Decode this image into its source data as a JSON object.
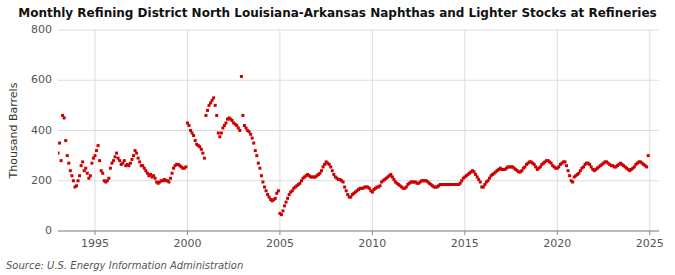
{
  "chart_data": {
    "type": "scatter",
    "title": "Monthly Refining District North Louisiana-Arkansas Naphthas and Lighter Stocks at Refineries",
    "y_label": "Thousand Barrels",
    "source": "Source: U.S. Energy Information Administration",
    "color": "#cc0000",
    "marker": "square",
    "grid": true,
    "xlim": [
      1993.0,
      2025.5
    ],
    "xticks": [
      1995,
      2000,
      2005,
      2010,
      2015,
      2020,
      2025
    ],
    "ylim": [
      0,
      800
    ],
    "yticks": [
      0,
      200,
      400,
      600,
      800
    ],
    "x": [
      1993.0,
      1993.083,
      1993.167,
      1993.25,
      1993.333,
      1993.417,
      1993.5,
      1993.583,
      1993.667,
      1993.75,
      1993.833,
      1993.917,
      1994.0,
      1994.083,
      1994.167,
      1994.25,
      1994.333,
      1994.417,
      1994.5,
      1994.583,
      1994.667,
      1994.75,
      1994.833,
      1994.917,
      1995.0,
      1995.083,
      1995.167,
      1995.25,
      1995.333,
      1995.417,
      1995.5,
      1995.583,
      1995.667,
      1995.75,
      1995.833,
      1995.917,
      1996.0,
      1996.083,
      1996.167,
      1996.25,
      1996.333,
      1996.417,
      1996.5,
      1996.583,
      1996.667,
      1996.75,
      1996.833,
      1996.917,
      1997.0,
      1997.083,
      1997.167,
      1997.25,
      1997.333,
      1997.417,
      1997.5,
      1997.583,
      1997.667,
      1997.75,
      1997.833,
      1997.917,
      1998.0,
      1998.083,
      1998.167,
      1998.25,
      1998.333,
      1998.417,
      1998.5,
      1998.583,
      1998.667,
      1998.75,
      1998.833,
      1998.917,
      1999.0,
      1999.083,
      1999.167,
      1999.25,
      1999.333,
      1999.417,
      1999.5,
      1999.583,
      1999.667,
      1999.75,
      1999.833,
      1999.917,
      2000.0,
      2000.083,
      2000.167,
      2000.25,
      2000.333,
      2000.417,
      2000.5,
      2000.583,
      2000.667,
      2000.75,
      2000.833,
      2000.917,
      2001.0,
      2001.083,
      2001.167,
      2001.25,
      2001.333,
      2001.417,
      2001.5,
      2001.583,
      2001.667,
      2001.75,
      2001.833,
      2001.917,
      2002.0,
      2002.083,
      2002.167,
      2002.25,
      2002.333,
      2002.417,
      2002.5,
      2002.583,
      2002.667,
      2002.75,
      2002.833,
      2002.917,
      2003.0,
      2003.083,
      2003.167,
      2003.25,
      2003.333,
      2003.417,
      2003.5,
      2003.583,
      2003.667,
      2003.75,
      2003.833,
      2003.917,
      2004.0,
      2004.083,
      2004.167,
      2004.25,
      2004.333,
      2004.417,
      2004.5,
      2004.583,
      2004.667,
      2004.75,
      2004.833,
      2004.917,
      2005.0,
      2005.083,
      2005.167,
      2005.25,
      2005.333,
      2005.417,
      2005.5,
      2005.583,
      2005.667,
      2005.75,
      2005.833,
      2005.917,
      2006.0,
      2006.083,
      2006.167,
      2006.25,
      2006.333,
      2006.417,
      2006.5,
      2006.583,
      2006.667,
      2006.75,
      2006.833,
      2006.917,
      2007.0,
      2007.083,
      2007.167,
      2007.25,
      2007.333,
      2007.417,
      2007.5,
      2007.583,
      2007.667,
      2007.75,
      2007.833,
      2007.917,
      2008.0,
      2008.083,
      2008.167,
      2008.25,
      2008.333,
      2008.417,
      2008.5,
      2008.583,
      2008.667,
      2008.75,
      2008.833,
      2008.917,
      2009.0,
      2009.083,
      2009.167,
      2009.25,
      2009.333,
      2009.417,
      2009.5,
      2009.583,
      2009.667,
      2009.75,
      2009.833,
      2009.917,
      2010.0,
      2010.083,
      2010.167,
      2010.25,
      2010.333,
      2010.417,
      2010.5,
      2010.583,
      2010.667,
      2010.75,
      2010.833,
      2010.917,
      2011.0,
      2011.083,
      2011.167,
      2011.25,
      2011.333,
      2011.417,
      2011.5,
      2011.583,
      2011.667,
      2011.75,
      2011.833,
      2011.917,
      2012.0,
      2012.083,
      2012.167,
      2012.25,
      2012.333,
      2012.417,
      2012.5,
      2012.583,
      2012.667,
      2012.75,
      2012.833,
      2012.917,
      2013.0,
      2013.083,
      2013.167,
      2013.25,
      2013.333,
      2013.417,
      2013.5,
      2013.583,
      2013.667,
      2013.75,
      2013.833,
      2013.917,
      2014.0,
      2014.083,
      2014.167,
      2014.25,
      2014.333,
      2014.417,
      2014.5,
      2014.583,
      2014.667,
      2014.75,
      2014.833,
      2014.917,
      2015.0,
      2015.083,
      2015.167,
      2015.25,
      2015.333,
      2015.417,
      2015.5,
      2015.583,
      2015.667,
      2015.75,
      2015.833,
      2015.917,
      2016.0,
      2016.083,
      2016.167,
      2016.25,
      2016.333,
      2016.417,
      2016.5,
      2016.583,
      2016.667,
      2016.75,
      2016.833,
      2016.917,
      2017.0,
      2017.083,
      2017.167,
      2017.25,
      2017.333,
      2017.417,
      2017.5,
      2017.583,
      2017.667,
      2017.75,
      2017.833,
      2017.917,
      2018.0,
      2018.083,
      2018.167,
      2018.25,
      2018.333,
      2018.417,
      2018.5,
      2018.583,
      2018.667,
      2018.75,
      2018.833,
      2018.917,
      2019.0,
      2019.083,
      2019.167,
      2019.25,
      2019.333,
      2019.417,
      2019.5,
      2019.583,
      2019.667,
      2019.75,
      2019.833,
      2019.917,
      2020.0,
      2020.083,
      2020.167,
      2020.25,
      2020.333,
      2020.417,
      2020.5,
      2020.583,
      2020.667,
      2020.75,
      2020.833,
      2020.917,
      2021.0,
      2021.083,
      2021.167,
      2021.25,
      2021.333,
      2021.417,
      2021.5,
      2021.583,
      2021.667,
      2021.75,
      2021.833,
      2021.917,
      2022.0,
      2022.083,
      2022.167,
      2022.25,
      2022.333,
      2022.417,
      2022.5,
      2022.583,
      2022.667,
      2022.75,
      2022.833,
      2022.917,
      2023.0,
      2023.083,
      2023.167,
      2023.25,
      2023.333,
      2023.417,
      2023.5,
      2023.583,
      2023.667,
      2023.75,
      2023.833,
      2023.917,
      2024.0,
      2024.083,
      2024.167,
      2024.25,
      2024.333,
      2024.417,
      2024.5,
      2024.583,
      2024.667,
      2024.75,
      2024.833,
      2024.917
    ],
    "values": [
      310,
      350,
      280,
      460,
      450,
      360,
      300,
      270,
      240,
      220,
      200,
      175,
      180,
      200,
      220,
      260,
      275,
      240,
      250,
      230,
      210,
      220,
      270,
      290,
      300,
      320,
      340,
      280,
      240,
      230,
      200,
      195,
      200,
      210,
      250,
      270,
      280,
      295,
      310,
      290,
      280,
      265,
      270,
      280,
      260,
      265,
      260,
      270,
      285,
      300,
      320,
      310,
      290,
      275,
      260,
      260,
      250,
      240,
      230,
      220,
      225,
      215,
      220,
      210,
      195,
      190,
      195,
      200,
      200,
      205,
      200,
      200,
      195,
      210,
      230,
      250,
      260,
      265,
      265,
      260,
      255,
      250,
      250,
      255,
      430,
      420,
      400,
      390,
      380,
      360,
      345,
      340,
      335,
      325,
      310,
      290,
      460,
      480,
      500,
      510,
      520,
      530,
      500,
      460,
      390,
      375,
      390,
      410,
      420,
      430,
      445,
      450,
      445,
      440,
      430,
      425,
      420,
      410,
      400,
      615,
      460,
      420,
      410,
      400,
      395,
      385,
      370,
      350,
      320,
      300,
      270,
      250,
      220,
      195,
      175,
      160,
      145,
      135,
      125,
      120,
      125,
      130,
      150,
      160,
      70,
      65,
      80,
      100,
      115,
      130,
      145,
      155,
      160,
      170,
      175,
      180,
      185,
      190,
      200,
      210,
      215,
      220,
      225,
      220,
      215,
      215,
      215,
      215,
      220,
      225,
      230,
      240,
      255,
      265,
      275,
      270,
      265,
      255,
      240,
      225,
      215,
      210,
      205,
      205,
      200,
      195,
      175,
      160,
      145,
      135,
      135,
      145,
      150,
      155,
      160,
      165,
      170,
      170,
      170,
      175,
      175,
      175,
      170,
      160,
      155,
      165,
      170,
      175,
      175,
      180,
      195,
      200,
      205,
      210,
      215,
      220,
      225,
      215,
      205,
      195,
      190,
      185,
      180,
      175,
      170,
      170,
      175,
      185,
      190,
      195,
      195,
      195,
      195,
      190,
      190,
      195,
      200,
      200,
      200,
      200,
      195,
      190,
      185,
      180,
      175,
      175,
      175,
      180,
      185,
      185,
      185,
      185,
      185,
      185,
      185,
      185,
      185,
      185,
      185,
      185,
      185,
      190,
      200,
      210,
      215,
      220,
      225,
      230,
      235,
      240,
      235,
      225,
      215,
      205,
      195,
      175,
      175,
      185,
      195,
      200,
      210,
      220,
      225,
      230,
      235,
      240,
      245,
      250,
      245,
      245,
      245,
      250,
      255,
      255,
      255,
      255,
      250,
      245,
      240,
      235,
      235,
      240,
      250,
      255,
      265,
      270,
      275,
      275,
      270,
      265,
      255,
      245,
      250,
      255,
      265,
      270,
      275,
      280,
      280,
      275,
      270,
      260,
      255,
      250,
      250,
      255,
      265,
      270,
      275,
      275,
      260,
      240,
      220,
      200,
      195,
      215,
      220,
      225,
      230,
      240,
      250,
      255,
      265,
      270,
      270,
      265,
      255,
      245,
      240,
      245,
      250,
      255,
      260,
      265,
      270,
      275,
      275,
      270,
      265,
      260,
      260,
      255,
      255,
      260,
      265,
      270,
      265,
      260,
      255,
      250,
      245,
      240,
      245,
      250,
      255,
      265,
      270,
      275,
      275,
      270,
      265,
      260,
      255,
      300
    ]
  }
}
